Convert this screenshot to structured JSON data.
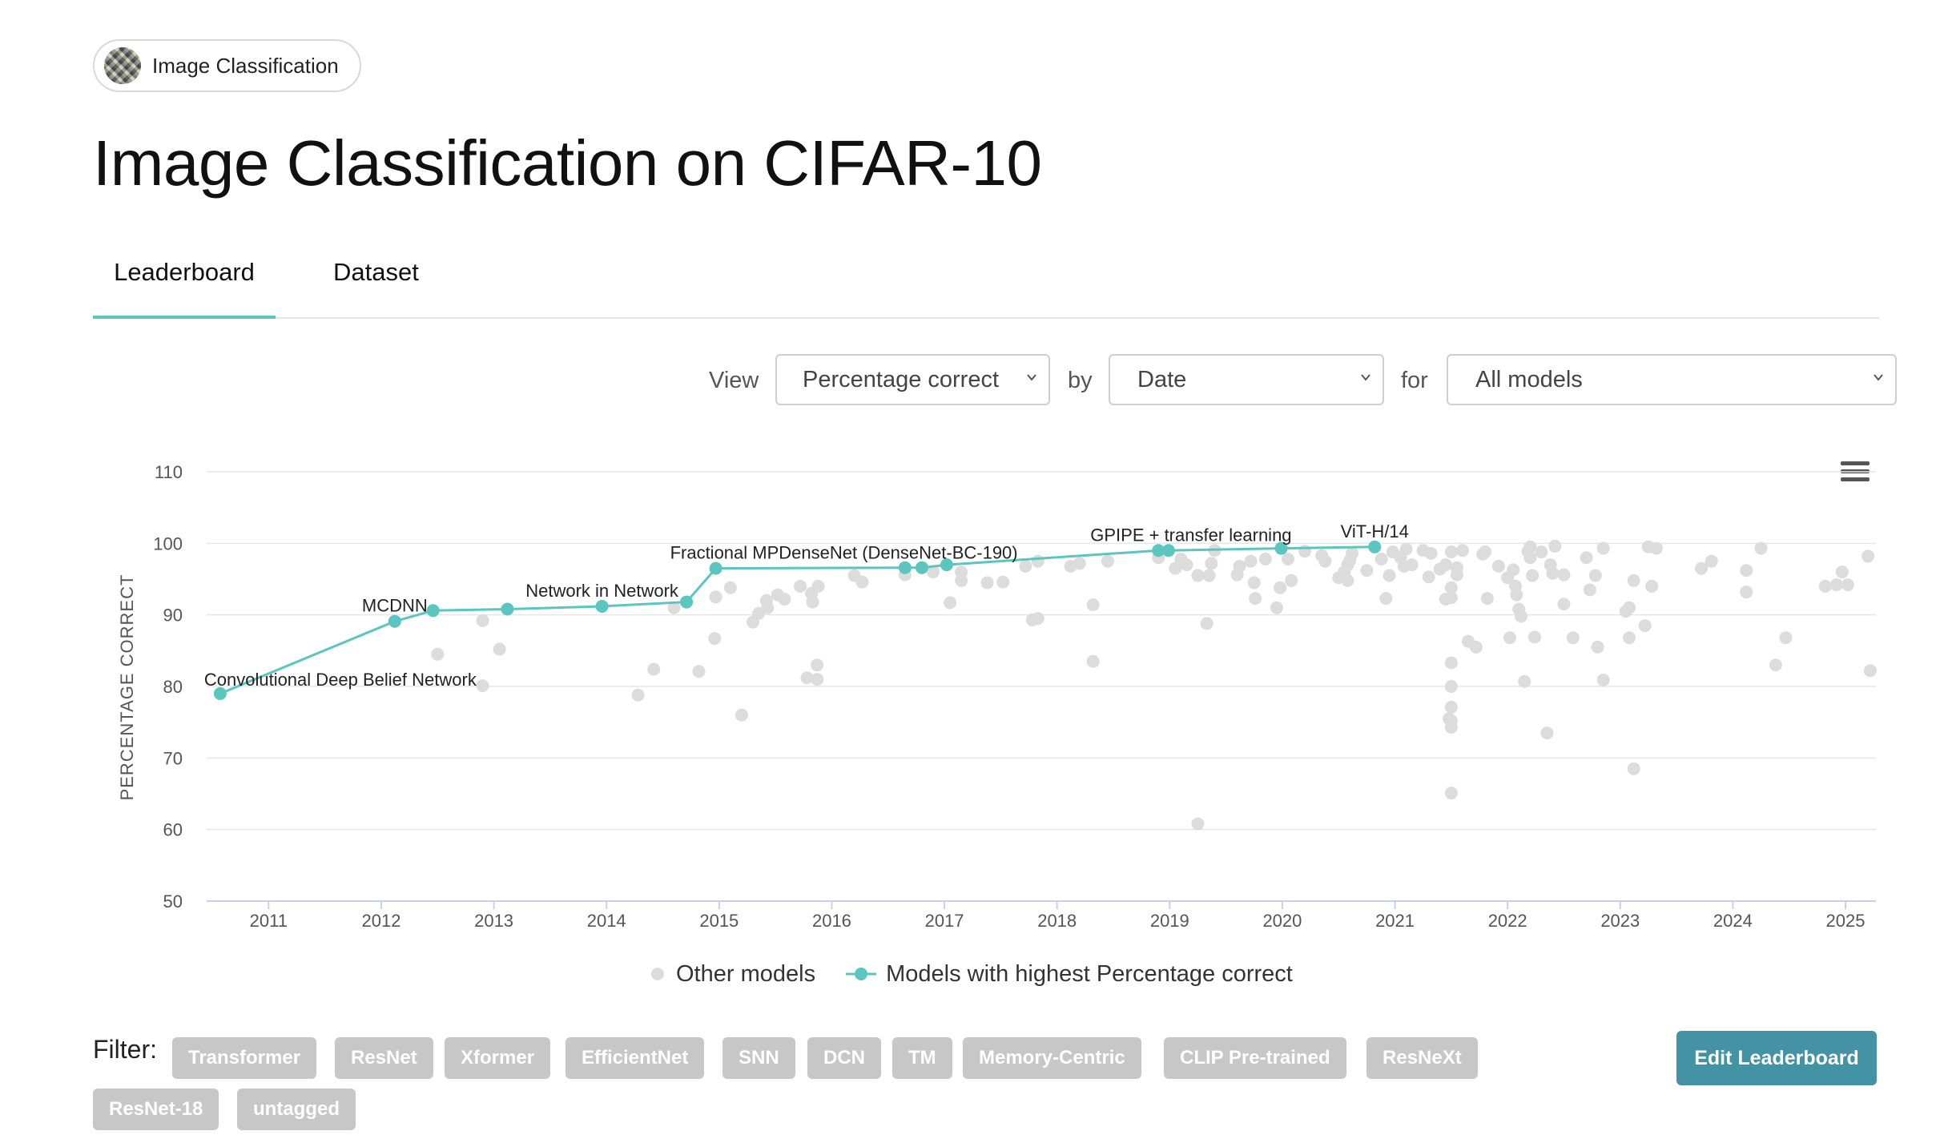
{
  "task": {
    "label": "Image Classification",
    "icon": "task-thumbnail-icon"
  },
  "title": "Image Classification on CIFAR-10",
  "tabs": [
    {
      "label": "Leaderboard"
    },
    {
      "label": "Dataset"
    }
  ],
  "controls": {
    "view_label": "View",
    "view_value": "Percentage correct",
    "by_label": "by",
    "by_value": "Date",
    "for_label": "for",
    "for_value": "All models"
  },
  "colors": {
    "accent": "#5bc5bf",
    "other": "#dcdcdc",
    "grid": "#e6e6e6",
    "button": "#4393a5",
    "tag": "#c7c7c7"
  },
  "chart_data": {
    "type": "scatter",
    "title": "",
    "xlabel": "",
    "ylabel": "PERCENTAGE CORRECT",
    "ylim": [
      50,
      110
    ],
    "yticks": [
      50,
      60,
      70,
      80,
      90,
      100,
      110
    ],
    "xlim": [
      2010.45,
      2025.27
    ],
    "xticks": [
      2011,
      2012,
      2013,
      2014,
      2015,
      2016,
      2017,
      2018,
      2019,
      2020,
      2021,
      2022,
      2023,
      2024,
      2025
    ],
    "legend": [
      "Other models",
      "Models with highest Percentage correct"
    ],
    "best_series": [
      {
        "x": 2010.57,
        "y": 79.0,
        "label": "Convolutional Deep Belief Network"
      },
      {
        "x": 2012.12,
        "y": 89.1,
        "label": "MCDNN"
      },
      {
        "x": 2012.46,
        "y": 90.6,
        "label": ""
      },
      {
        "x": 2013.12,
        "y": 90.8,
        "label": ""
      },
      {
        "x": 2013.96,
        "y": 91.2,
        "label": "Network in Network"
      },
      {
        "x": 2014.71,
        "y": 91.8,
        "label": ""
      },
      {
        "x": 2014.97,
        "y": 96.5,
        "label": "Fractional MPDenseNet (DenseNet-BC-190)"
      },
      {
        "x": 2016.65,
        "y": 96.6,
        "label": ""
      },
      {
        "x": 2016.8,
        "y": 96.6,
        "label": ""
      },
      {
        "x": 2017.02,
        "y": 97.0,
        "label": ""
      },
      {
        "x": 2018.9,
        "y": 99.0,
        "label": ""
      },
      {
        "x": 2018.99,
        "y": 99.0,
        "label": "GPIPE + transfer learning"
      },
      {
        "x": 2019.99,
        "y": 99.3,
        "label": ""
      },
      {
        "x": 2020.82,
        "y": 99.5,
        "label": "ViT-H/14"
      }
    ],
    "other_models": [
      [
        2012.9,
        89.2
      ],
      [
        2012.9,
        80.1
      ],
      [
        2012.5,
        84.5
      ],
      [
        2013.05,
        85.2
      ],
      [
        2014.28,
        78.8
      ],
      [
        2014.42,
        82.4
      ],
      [
        2014.6,
        91.0
      ],
      [
        2014.82,
        82.1
      ],
      [
        2014.96,
        86.7
      ],
      [
        2014.97,
        92.5
      ],
      [
        2015.1,
        93.8
      ],
      [
        2015.2,
        76.0
      ],
      [
        2015.3,
        89.0
      ],
      [
        2015.35,
        90.2
      ],
      [
        2015.42,
        92.0
      ],
      [
        2015.43,
        91.0
      ],
      [
        2015.58,
        92.2
      ],
      [
        2015.52,
        92.8
      ],
      [
        2015.72,
        94.0
      ],
      [
        2015.82,
        93.0
      ],
      [
        2015.83,
        91.8
      ],
      [
        2015.87,
        83.0
      ],
      [
        2015.87,
        81.0
      ],
      [
        2015.78,
        81.2
      ],
      [
        2015.88,
        94.0
      ],
      [
        2016.2,
        95.5
      ],
      [
        2016.27,
        94.6
      ],
      [
        2016.65,
        95.6
      ],
      [
        2016.9,
        96.0
      ],
      [
        2017.05,
        91.7
      ],
      [
        2017.15,
        94.8
      ],
      [
        2017.15,
        96.0
      ],
      [
        2017.38,
        94.5
      ],
      [
        2017.52,
        94.6
      ],
      [
        2017.72,
        96.8
      ],
      [
        2017.78,
        89.3
      ],
      [
        2017.83,
        89.5
      ],
      [
        2017.83,
        97.5
      ],
      [
        2018.12,
        96.8
      ],
      [
        2018.2,
        97.2
      ],
      [
        2018.32,
        91.4
      ],
      [
        2018.32,
        83.5
      ],
      [
        2018.45,
        97.5
      ],
      [
        2018.9,
        98.0
      ],
      [
        2019.05,
        96.5
      ],
      [
        2019.1,
        97.8
      ],
      [
        2019.15,
        97.0
      ],
      [
        2019.25,
        95.5
      ],
      [
        2019.25,
        60.8
      ],
      [
        2019.33,
        88.8
      ],
      [
        2019.35,
        95.5
      ],
      [
        2019.37,
        97.2
      ],
      [
        2019.4,
        99.0
      ],
      [
        2019.6,
        95.6
      ],
      [
        2019.62,
        96.8
      ],
      [
        2019.72,
        97.5
      ],
      [
        2019.75,
        94.5
      ],
      [
        2019.76,
        92.3
      ],
      [
        2019.85,
        97.8
      ],
      [
        2019.95,
        91.0
      ],
      [
        2019.98,
        93.8
      ],
      [
        2020.05,
        97.8
      ],
      [
        2020.08,
        94.8
      ],
      [
        2020.2,
        98.9
      ],
      [
        2020.35,
        98.3
      ],
      [
        2020.38,
        97.5
      ],
      [
        2020.5,
        95.2
      ],
      [
        2020.55,
        96.0
      ],
      [
        2020.58,
        97.0
      ],
      [
        2020.6,
        97.6
      ],
      [
        2020.58,
        94.8
      ],
      [
        2020.62,
        98.6
      ],
      [
        2020.75,
        96.2
      ],
      [
        2020.88,
        97.8
      ],
      [
        2020.92,
        92.3
      ],
      [
        2020.95,
        95.5
      ],
      [
        2020.98,
        98.8
      ],
      [
        2021.05,
        98.0
      ],
      [
        2021.08,
        96.8
      ],
      [
        2021.1,
        99.2
      ],
      [
        2021.15,
        97.0
      ],
      [
        2021.25,
        99.0
      ],
      [
        2021.3,
        95.3
      ],
      [
        2021.32,
        98.6
      ],
      [
        2021.4,
        96.4
      ],
      [
        2021.45,
        97.0
      ],
      [
        2021.45,
        92.2
      ],
      [
        2021.5,
        92.4
      ],
      [
        2021.5,
        98.8
      ],
      [
        2021.55,
        95.6
      ],
      [
        2021.55,
        96.6
      ],
      [
        2021.6,
        99.0
      ],
      [
        2021.5,
        93.8
      ],
      [
        2021.48,
        75.5
      ],
      [
        2021.5,
        75.2
      ],
      [
        2021.5,
        74.3
      ],
      [
        2021.5,
        77.1
      ],
      [
        2021.5,
        80.0
      ],
      [
        2021.5,
        83.3
      ],
      [
        2021.5,
        65.1
      ],
      [
        2021.65,
        86.3
      ],
      [
        2021.72,
        85.5
      ],
      [
        2021.78,
        98.5
      ],
      [
        2021.82,
        92.3
      ],
      [
        2021.8,
        98.8
      ],
      [
        2021.92,
        96.8
      ],
      [
        2022.0,
        95.2
      ],
      [
        2022.02,
        86.8
      ],
      [
        2022.05,
        96.3
      ],
      [
        2022.07,
        94.0
      ],
      [
        2022.08,
        92.8
      ],
      [
        2022.1,
        90.8
      ],
      [
        2022.12,
        89.8
      ],
      [
        2022.15,
        80.7
      ],
      [
        2022.18,
        98.9
      ],
      [
        2022.2,
        99.5
      ],
      [
        2022.2,
        98.0
      ],
      [
        2022.22,
        95.5
      ],
      [
        2022.24,
        86.9
      ],
      [
        2022.3,
        98.8
      ],
      [
        2022.35,
        73.5
      ],
      [
        2022.38,
        97.0
      ],
      [
        2022.4,
        95.8
      ],
      [
        2022.42,
        99.6
      ],
      [
        2022.5,
        91.5
      ],
      [
        2022.5,
        95.6
      ],
      [
        2022.58,
        86.8
      ],
      [
        2022.7,
        98.0
      ],
      [
        2022.73,
        93.5
      ],
      [
        2022.78,
        95.5
      ],
      [
        2022.8,
        85.5
      ],
      [
        2022.85,
        99.3
      ],
      [
        2022.85,
        80.9
      ],
      [
        2023.05,
        90.5
      ],
      [
        2023.08,
        91.0
      ],
      [
        2023.08,
        86.8
      ],
      [
        2023.12,
        68.5
      ],
      [
        2023.12,
        94.8
      ],
      [
        2023.22,
        88.5
      ],
      [
        2023.25,
        99.5
      ],
      [
        2023.28,
        94.0
      ],
      [
        2023.32,
        99.3
      ],
      [
        2023.72,
        96.5
      ],
      [
        2023.81,
        97.5
      ],
      [
        2024.12,
        96.2
      ],
      [
        2024.12,
        93.2
      ],
      [
        2024.25,
        99.3
      ],
      [
        2024.38,
        83.0
      ],
      [
        2024.47,
        86.8
      ],
      [
        2024.82,
        94.0
      ],
      [
        2024.92,
        94.2
      ],
      [
        2024.97,
        96.0
      ],
      [
        2025.02,
        94.2
      ],
      [
        2025.2,
        98.2
      ],
      [
        2025.22,
        82.2
      ]
    ]
  },
  "filter": {
    "label": "Filter:",
    "tags": [
      "Transformer",
      "ResNet",
      "Xformer",
      "EfficientNet",
      "SNN",
      "DCN",
      "TM",
      "Memory-Centric",
      "CLIP Pre-trained",
      "ResNeXt",
      "ResNet-18",
      "untagged"
    ]
  },
  "edit_button": "Edit Leaderboard"
}
